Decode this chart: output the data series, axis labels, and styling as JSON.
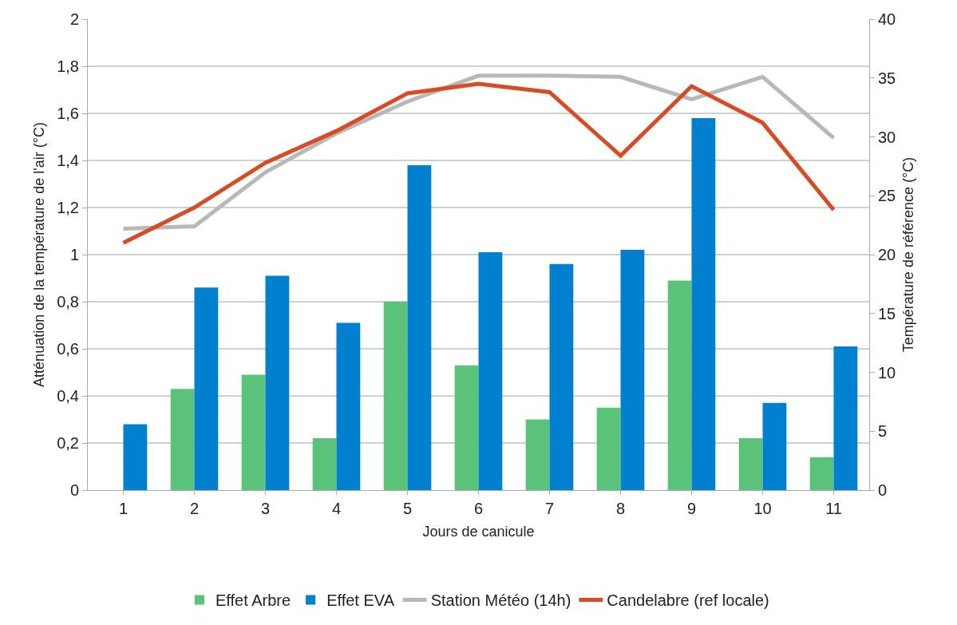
{
  "chart_data": {
    "type": "bar",
    "xlabel": "Jours de canicule",
    "ylabel": "Atténuation de la température de l'air (°C)",
    "y2label": "Température de référence (°C)",
    "categories": [
      "1",
      "2",
      "3",
      "4",
      "5",
      "6",
      "7",
      "8",
      "9",
      "10",
      "11"
    ],
    "series": [
      {
        "name": "Effet Arbre",
        "color": "#5bc27a",
        "values": [
          0,
          0.43,
          0.49,
          0.22,
          0.8,
          0.53,
          0.3,
          0.35,
          0.89,
          0.22,
          0.14
        ]
      },
      {
        "name": "Effet EVA",
        "color": "#0080cf",
        "values": [
          0.28,
          0.86,
          0.91,
          0.71,
          1.38,
          1.01,
          0.96,
          1.02,
          1.58,
          0.37,
          0.61
        ]
      },
      {
        "name": "Station Météo (14h)",
        "type": "line",
        "axis": "y2",
        "color": "#b8b8b8",
        "values": [
          22.2,
          22.4,
          27,
          30.3,
          33,
          35.2,
          35.2,
          35.1,
          33.2,
          35.1,
          29.9
        ]
      },
      {
        "name": "Candelabre (ref locale)",
        "type": "line",
        "axis": "y2",
        "color": "#d84b24",
        "values": [
          21,
          24,
          27.8,
          30.5,
          33.7,
          34.5,
          33.8,
          28.4,
          34.3,
          31.2,
          23.8
        ]
      }
    ],
    "ylim": [
      0,
      2
    ],
    "yticks": [
      0,
      {
        "value": 0.2,
        "label": "0,2"
      },
      {
        "value": 0.4,
        "label": "0,4"
      },
      {
        "value": 0.6,
        "label": "0,6"
      },
      {
        "value": 0.8,
        "label": "0,8"
      },
      1,
      {
        "value": 1.2,
        "label": "1,2"
      },
      {
        "value": 1.4,
        "label": "1,4"
      },
      {
        "value": 1.6,
        "label": "1,6"
      },
      {
        "value": 1.8,
        "label": "1,8"
      },
      2
    ],
    "y2lim": [
      0,
      40
    ],
    "y2ticks": [
      0,
      5,
      10,
      15,
      20,
      25,
      30,
      35,
      40
    ],
    "grid": "y",
    "legend": "bottom",
    "marker": "none",
    "line_style": "solid"
  }
}
